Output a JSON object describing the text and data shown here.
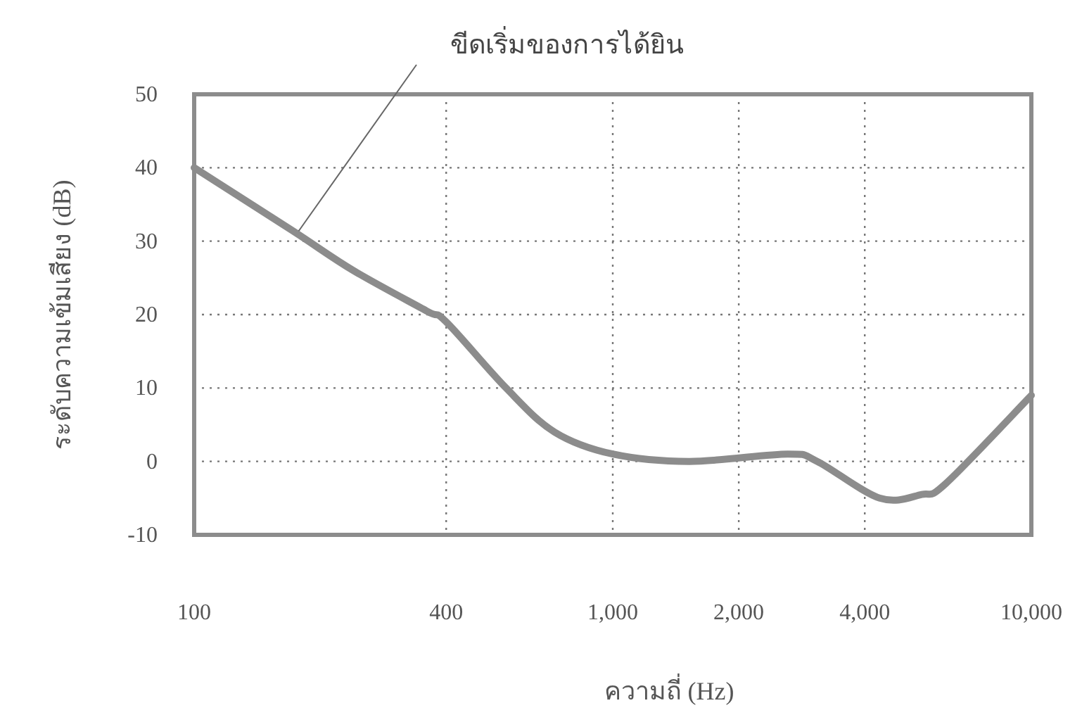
{
  "chart_data": {
    "type": "line",
    "xlabel": "ความถี่ (Hz)",
    "ylabel": "ระดับความเข้มเสียง (dB)",
    "annotations": [
      {
        "text": "ขีดเริ่มของการได้ยิน",
        "x": 175,
        "y": 31
      }
    ],
    "x": [
      100,
      171,
      240,
      359,
      400,
      556,
      726,
      1000,
      1524,
      2618,
      3080,
      4340,
      5470,
      6250,
      10000
    ],
    "series": [
      {
        "color": "#8c8c8c",
        "values": [
          40,
          31.5,
          26,
          20.5,
          19,
          10,
          4,
          1,
          0,
          1,
          0,
          -5,
          -4.5,
          -3,
          9
        ]
      }
    ],
    "log": "x",
    "xlim": [
      100,
      10000
    ],
    "xticks": [
      {
        "value": 100,
        "label": "100"
      },
      {
        "value": 400,
        "label": "400"
      },
      {
        "value": 1000,
        "label": "1,000"
      },
      {
        "value": 2000,
        "label": "2,000"
      },
      {
        "value": 4000,
        "label": "4,000"
      },
      {
        "value": 10000,
        "label": "10,000"
      }
    ],
    "ylim": [
      -10,
      50
    ],
    "yticks": [
      -10,
      0,
      10,
      20,
      30,
      40,
      50
    ],
    "grid": true,
    "line_style": "solid",
    "marker": "none"
  }
}
